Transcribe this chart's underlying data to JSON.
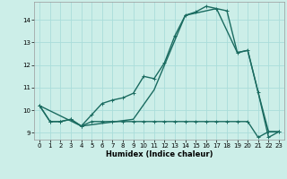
{
  "title": "",
  "xlabel": "Humidex (Indice chaleur)",
  "ylabel": "",
  "bg_color": "#cceee8",
  "line_color": "#1a6b60",
  "grid_color": "#aaddda",
  "ylim": [
    8.7,
    14.8
  ],
  "xlim": [
    -0.5,
    23.5
  ],
  "yticks": [
    9,
    10,
    11,
    12,
    13,
    14
  ],
  "xticks": [
    0,
    1,
    2,
    3,
    4,
    5,
    6,
    7,
    8,
    9,
    10,
    11,
    12,
    13,
    14,
    15,
    16,
    17,
    18,
    19,
    20,
    21,
    22,
    23
  ],
  "line_main_x": [
    0,
    1,
    2,
    3,
    4,
    5,
    6,
    7,
    8,
    9,
    10,
    11,
    12,
    13,
    14,
    15,
    16,
    17,
    18,
    19,
    20,
    21,
    22,
    23
  ],
  "line_main_y": [
    10.2,
    9.5,
    9.5,
    9.6,
    9.3,
    9.8,
    10.3,
    10.45,
    10.55,
    10.75,
    11.5,
    11.4,
    12.1,
    13.3,
    14.2,
    14.35,
    14.6,
    14.5,
    14.4,
    12.55,
    12.65,
    10.8,
    8.8,
    9.05
  ],
  "line_diag_x": [
    0,
    4,
    9,
    11,
    14,
    17,
    19,
    20,
    21,
    22,
    23
  ],
  "line_diag_y": [
    10.2,
    9.3,
    9.6,
    10.9,
    14.2,
    14.5,
    12.55,
    12.65,
    10.8,
    9.05,
    9.05
  ],
  "line_flat_x": [
    0,
    1,
    2,
    3,
    4,
    5,
    6,
    7,
    8,
    9,
    10,
    11,
    12,
    13,
    14,
    15,
    16,
    17,
    18,
    19,
    20,
    21,
    22,
    23
  ],
  "line_flat_y": [
    10.2,
    9.5,
    9.5,
    9.6,
    9.3,
    9.5,
    9.5,
    9.5,
    9.5,
    9.5,
    9.5,
    9.5,
    9.5,
    9.5,
    9.5,
    9.5,
    9.5,
    9.5,
    9.5,
    9.5,
    9.5,
    8.8,
    9.05,
    9.05
  ],
  "marker_size": 2.5,
  "line_width": 1.0
}
